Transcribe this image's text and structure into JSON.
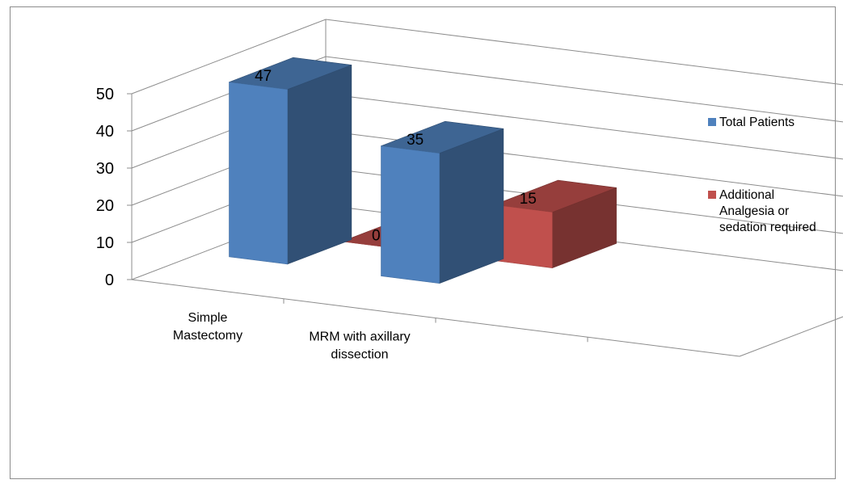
{
  "chart_data": {
    "type": "bar",
    "categories": [
      [
        "Simple",
        "Mastectomy"
      ],
      [
        "MRM with axillary",
        "dissection"
      ]
    ],
    "series": [
      {
        "name": "Total Patients",
        "values": [
          47,
          35
        ],
        "color": "#4f81bd"
      },
      {
        "name": "Additional Analgesia or sedation required",
        "name_lines": [
          "Additional",
          "Analgesia or",
          "sedation required"
        ],
        "values": [
          0,
          15
        ],
        "color": "#c0504d"
      }
    ],
    "yticks": [
      0,
      10,
      20,
      30,
      40,
      50
    ],
    "ylim": [
      0,
      50
    ],
    "grid": true,
    "legend_position": "right",
    "style": "3d-column"
  }
}
